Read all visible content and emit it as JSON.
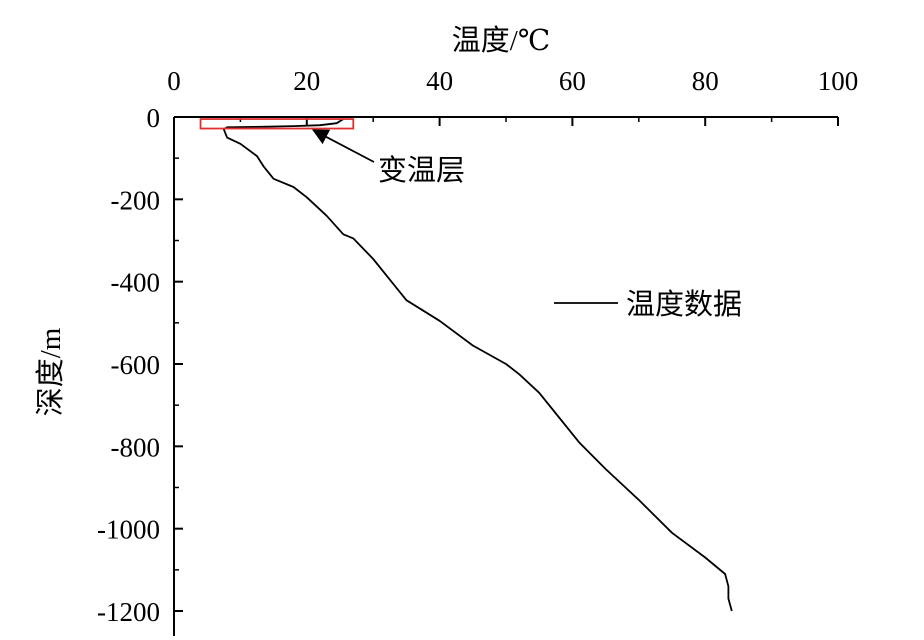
{
  "chart_data": {
    "type": "line",
    "xlabel": "温度/℃",
    "ylabel": "深度/m",
    "x_axis_position": "top",
    "xlim": [
      0,
      100
    ],
    "ylim": [
      -1200,
      0
    ],
    "xticks": [
      "0",
      "20",
      "40",
      "60",
      "80",
      "100"
    ],
    "yticks": [
      "0",
      "-200",
      "-400",
      "-600",
      "-800",
      "-1000",
      "-1200"
    ],
    "grid": false,
    "legend_position": "center-right",
    "series": [
      {
        "name": "温度数据",
        "color": "#000000",
        "x": [
          25.5,
          24.5,
          22,
          18,
          12,
          8,
          7.5,
          8,
          10,
          12.5,
          13.5,
          15,
          18,
          20,
          23,
          25.5,
          27,
          30,
          35,
          40,
          45,
          50,
          52,
          55,
          58,
          61,
          65,
          70,
          75,
          80,
          83,
          83.5,
          83.5,
          84
        ],
        "y": [
          -5,
          -15,
          -20,
          -22,
          -24,
          -25,
          -30,
          -50,
          -65,
          -95,
          -120,
          -150,
          -170,
          -195,
          -240,
          -285,
          -295,
          -345,
          -445,
          -495,
          -555,
          -600,
          -625,
          -670,
          -730,
          -790,
          -855,
          -930,
          -1010,
          -1070,
          -1110,
          -1140,
          -1170,
          -1200
        ]
      }
    ],
    "annotations": [
      {
        "label": "变温层",
        "box_x": [
          4,
          27
        ],
        "box_y": [
          -28,
          -5
        ],
        "box_color": "#e03030",
        "arrow_to": [
          21,
          -32
        ]
      }
    ]
  }
}
